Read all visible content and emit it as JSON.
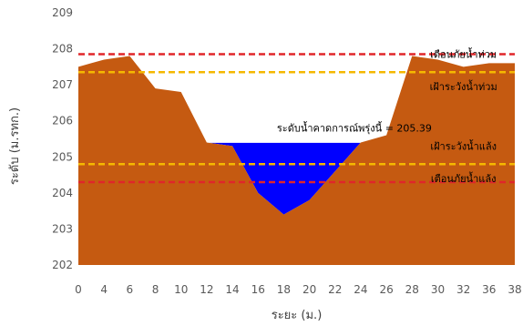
{
  "chart_data": {
    "type": "area",
    "xlabel": "ระยะ (ม.)",
    "ylabel": "ระดับ (ม.รทก.)",
    "xlim": [
      0,
      38
    ],
    "ylim": [
      202,
      209
    ],
    "x_ticks": [
      0,
      4,
      6,
      8,
      10,
      12,
      14,
      16,
      18,
      20,
      22,
      24,
      26,
      28,
      30,
      32,
      36,
      38
    ],
    "y_ticks": [
      202,
      203,
      204,
      205,
      206,
      207,
      208,
      209
    ],
    "grid": false,
    "colors": {
      "ground": "#C55A11",
      "water": "#0000FF",
      "red_line": "#E0262A",
      "yellow_line": "#F5B800"
    },
    "series": [
      {
        "kind": "ground",
        "x": [
          0,
          2,
          4,
          6,
          8,
          10,
          12,
          14,
          16,
          18,
          20,
          22,
          24,
          26,
          28,
          30,
          32,
          36,
          38
        ],
        "y": [
          207.5,
          207.6,
          207.7,
          207.8,
          206.9,
          206.8,
          205.4,
          205.3,
          204.0,
          203.4,
          203.8,
          204.6,
          205.4,
          205.6,
          207.8,
          207.7,
          207.5,
          207.6,
          207.6
        ]
      },
      {
        "kind": "water",
        "level": 205.39
      }
    ],
    "reference_lines": [
      {
        "y": 207.85,
        "color": "red",
        "style": "dashed"
      },
      {
        "y": 207.35,
        "color": "yellow",
        "style": "dashed"
      },
      {
        "y": 204.8,
        "color": "yellow",
        "style": "dashed"
      },
      {
        "y": 204.3,
        "color": "red",
        "style": "dashed"
      }
    ],
    "annotations": [
      {
        "text": "เตือนภัยน้ำท่วม",
        "x": 32,
        "y": 207.85
      },
      {
        "text": "เฝ้าระวังน้ำท่วม",
        "x": 32,
        "y": 206.95
      },
      {
        "text": "ระดับน้ำคาดการณ์พรุ่งนี้ = 205.39",
        "x": 23.5,
        "y": 205.8
      },
      {
        "text": "เฝ้าระวังน้ำแล้ง",
        "x": 32,
        "y": 205.3
      },
      {
        "text": "เตือนภัยน้ำแล้ง",
        "x": 32,
        "y": 204.4
      }
    ]
  }
}
